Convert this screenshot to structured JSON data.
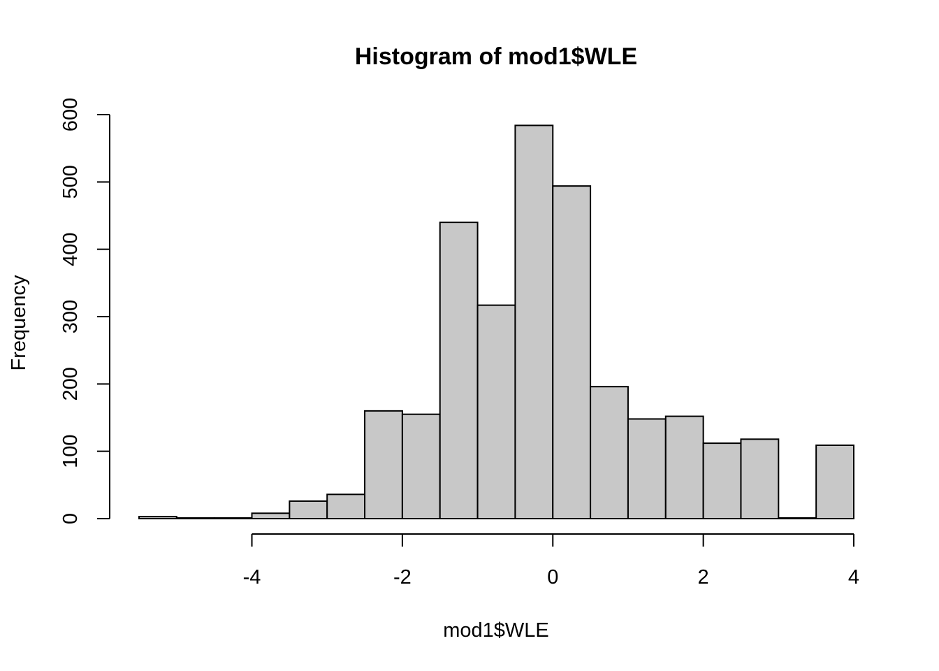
{
  "chart_data": {
    "type": "bar",
    "title": "Histogram of mod1$WLE",
    "xlabel": "mod1$WLE",
    "ylabel": "Frequency",
    "bin_edges": [
      -5.5,
      -5.0,
      -4.5,
      -4.0,
      -3.5,
      -3.0,
      -2.5,
      -2.0,
      -1.5,
      -1.0,
      -0.5,
      0.0,
      0.5,
      1.0,
      1.5,
      2.0,
      2.5,
      3.0,
      3.5,
      4.0
    ],
    "values": [
      3,
      1,
      1,
      8,
      26,
      36,
      160,
      155,
      440,
      317,
      584,
      494,
      196,
      148,
      152,
      112,
      118,
      1,
      109
    ],
    "xlim": [
      -5.5,
      4.0
    ],
    "ylim": [
      0,
      600
    ],
    "x_ticks": [
      -4,
      -2,
      0,
      2,
      4
    ],
    "x_tick_labels": [
      "-4",
      "-2",
      "0",
      "2",
      "4"
    ],
    "y_ticks": [
      0,
      100,
      200,
      300,
      400,
      500,
      600
    ],
    "y_tick_labels": [
      "0",
      "100",
      "200",
      "300",
      "400",
      "500",
      "600"
    ],
    "grid": false,
    "legend": "none",
    "colors": {
      "bar_fill": "#c8c8c8",
      "bar_stroke": "#000000"
    }
  }
}
